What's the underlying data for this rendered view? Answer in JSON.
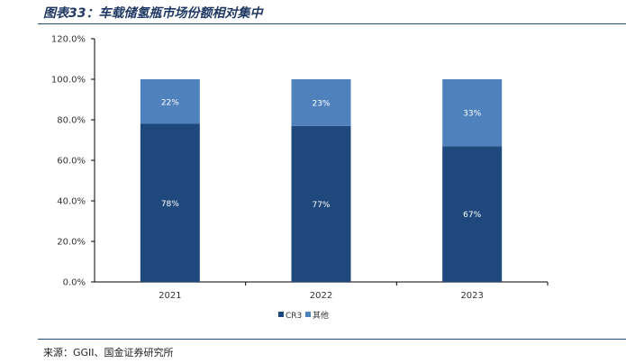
{
  "title": "图表33：车载储氢瓶市场份额相对集中",
  "source": "来源：GGII、国金证券研究所",
  "colors": {
    "CR3": "#1f497d",
    "其他": "#4f81bd"
  },
  "chart_data": {
    "type": "bar",
    "stacked": true,
    "categories": [
      "2021",
      "2022",
      "2023"
    ],
    "series": [
      {
        "name": "CR3",
        "values": [
          78,
          77,
          67
        ],
        "labels": [
          "78%",
          "77%",
          "67%"
        ]
      },
      {
        "name": "其他",
        "values": [
          22,
          23,
          33
        ],
        "labels": [
          "22%",
          "23%",
          "33%"
        ]
      }
    ],
    "ylim": [
      0,
      120
    ],
    "yticks": [
      "0.0%",
      "20.0%",
      "40.0%",
      "60.0%",
      "80.0%",
      "100.0%",
      "120.0%"
    ],
    "legend": "bottom",
    "grid": false
  }
}
